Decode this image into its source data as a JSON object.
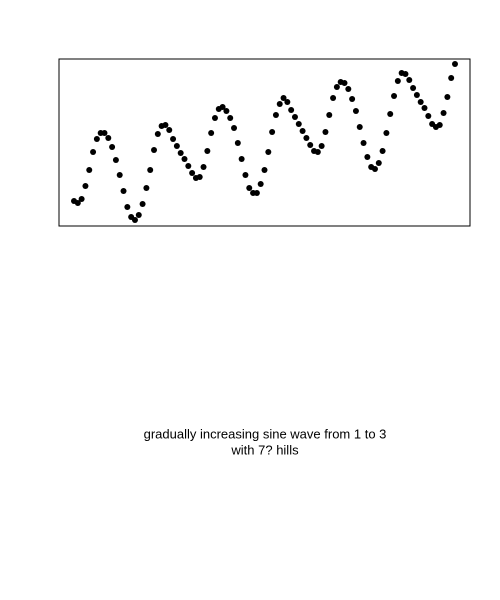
{
  "chart_data": {
    "type": "scatter",
    "title": [
      "gradually increasing sine wave from 1 to 3",
      "with 7? hills"
    ],
    "color": "#000000",
    "x": [
      0,
      1,
      2,
      3,
      4,
      5,
      6,
      7,
      8,
      9,
      10,
      11,
      12,
      13,
      14,
      15,
      16,
      17,
      18,
      19,
      20,
      21,
      22,
      23,
      24,
      25,
      26,
      27,
      28,
      29,
      30,
      31,
      32,
      33,
      34,
      35,
      36,
      37,
      38,
      39,
      40,
      41,
      42,
      43,
      44,
      45,
      46,
      47,
      48,
      49,
      50,
      51,
      52,
      53,
      54,
      55,
      56,
      57,
      58,
      59,
      60,
      61,
      62,
      63,
      64,
      65,
      66,
      67,
      68,
      69,
      70,
      71,
      72,
      73,
      74,
      75,
      76,
      77,
      78,
      79,
      80,
      81,
      82,
      83,
      84,
      85,
      86,
      87,
      88,
      89,
      90,
      91,
      92,
      93,
      94,
      95,
      96,
      97,
      98,
      99,
      100
    ],
    "values": [
      25,
      23,
      27,
      40,
      56,
      74,
      87,
      93,
      93,
      88,
      79,
      66,
      51,
      35,
      19,
      9,
      6,
      11,
      22,
      38,
      56,
      76,
      92,
      100,
      101,
      96,
      87,
      80,
      73,
      67,
      60,
      53,
      48,
      49,
      59,
      75,
      93,
      108,
      117,
      119,
      115,
      108,
      98,
      83,
      67,
      51,
      38,
      33,
      33,
      42,
      56,
      74,
      94,
      111,
      122,
      128,
      124,
      116,
      109,
      102,
      95,
      88,
      81,
      75,
      74,
      80,
      94,
      111,
      128,
      139,
      144,
      143,
      137,
      127,
      115,
      99,
      83,
      69,
      59,
      57,
      63,
      75,
      93,
      112,
      130,
      145,
      153,
      152,
      146,
      138,
      131,
      124,
      118,
      110,
      102,
      99,
      101,
      113,
      129,
      148,
      162
    ],
    "xlim": [
      -3.94,
      103.94
    ],
    "ylim": [
      0,
      167
    ]
  }
}
